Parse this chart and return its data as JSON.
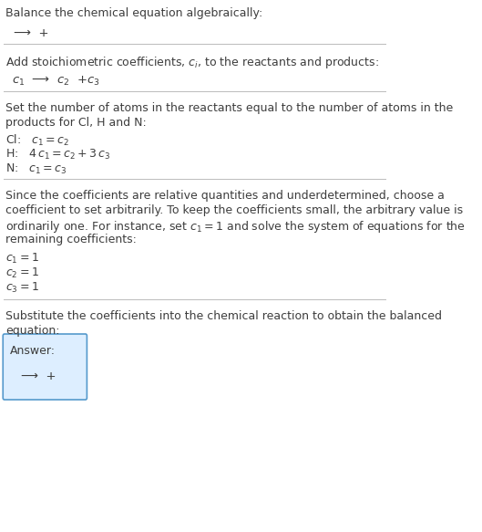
{
  "bg_color": "#ffffff",
  "text_color": "#3d3d3d",
  "divider_color": "#bbbbbb",
  "answer_box_color": "#ddeeff",
  "answer_box_border": "#5599cc",
  "font_size": 9.0,
  "font_size_eq": 9.5,
  "sections": [
    {
      "type": "text+eq",
      "text": "Balance the chemical equation algebraically:",
      "eq": "⟶  +"
    },
    {
      "type": "text+eq",
      "text": "Add stoichiometric coefficients, $c_i$, to the reactants and products:",
      "eq": "$c_1$  ⟶  $c_2$  +$c_3$"
    },
    {
      "type": "text+eqs",
      "text": "Set the number of atoms in the reactants equal to the number of atoms in the\nproducts for Cl, H and N:",
      "eqs": [
        "Cl:   $c_1 = c_2$",
        "H:   $4\\,c_1 = c_2 + 3\\,c_3$",
        "N:   $c_1 = c_3$"
      ]
    },
    {
      "type": "text+eqs",
      "text": "Since the coefficients are relative quantities and underdetermined, choose a\ncoefficient to set arbitrarily. To keep the coefficients small, the arbitrary value is\nordinarily one. For instance, set $c_1 = 1$ and solve the system of equations for the\nremaining coefficients:",
      "eqs": [
        "$c_1 = 1$",
        "$c_2 = 1$",
        "$c_3 = 1$"
      ]
    },
    {
      "type": "answer",
      "text": "Substitute the coefficients into the chemical reaction to obtain the balanced\nequation:",
      "answer_label": "Answer:",
      "answer_eq": "⟶  +"
    }
  ]
}
